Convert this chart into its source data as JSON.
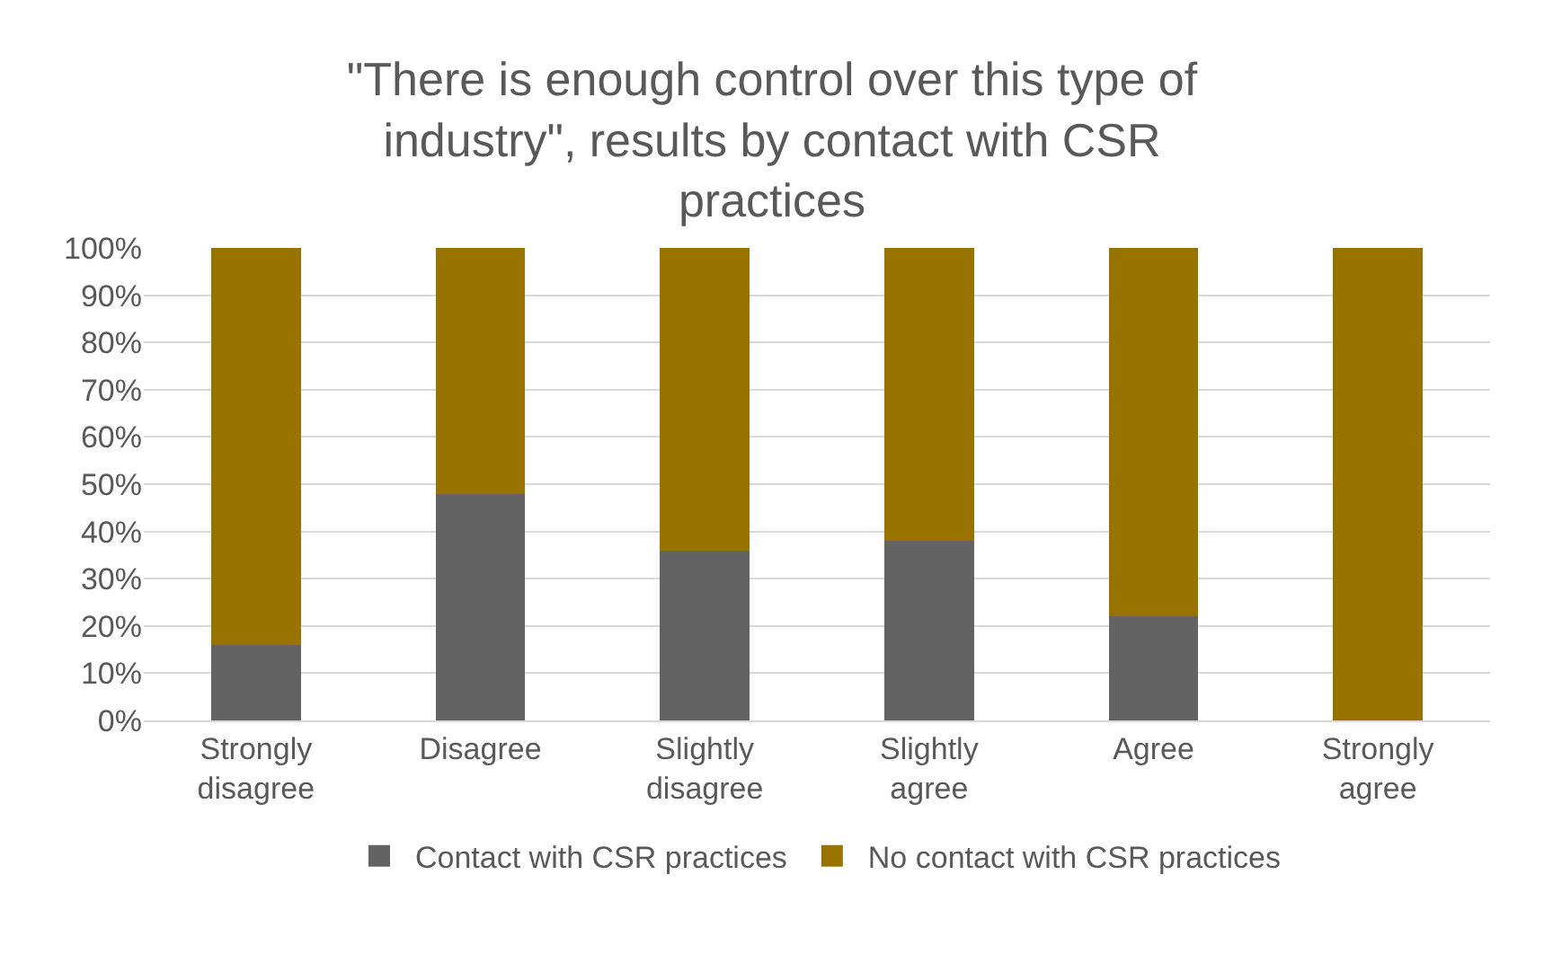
{
  "chart_data": {
    "type": "bar",
    "stacked": true,
    "title": "\"There is enough control over this type of industry\", results by contact with CSR practices",
    "categories": [
      "Strongly disagree",
      "Disagree",
      "Slightly disagree",
      "Slightly agree",
      "Agree",
      "Strongly agree"
    ],
    "series": [
      {
        "name": "Contact with CSR practices",
        "color": "#636363",
        "values": [
          16,
          48,
          36,
          38,
          22,
          0
        ]
      },
      {
        "name": "No contact with CSR practices",
        "color": "#997300",
        "values": [
          84,
          52,
          64,
          62,
          78,
          100
        ]
      }
    ],
    "ylim": [
      0,
      100
    ],
    "yticks": [
      {
        "value": 0,
        "label": "0%"
      },
      {
        "value": 10,
        "label": "10%"
      },
      {
        "value": 20,
        "label": "20%"
      },
      {
        "value": 30,
        "label": "30%"
      },
      {
        "value": 40,
        "label": "40%"
      },
      {
        "value": 50,
        "label": "50%"
      },
      {
        "value": 60,
        "label": "60%"
      },
      {
        "value": 70,
        "label": "70%"
      },
      {
        "value": 80,
        "label": "80%"
      },
      {
        "value": 90,
        "label": "90%"
      },
      {
        "value": 100,
        "label": "100%"
      }
    ],
    "grid": "y",
    "legend": "bottom"
  }
}
